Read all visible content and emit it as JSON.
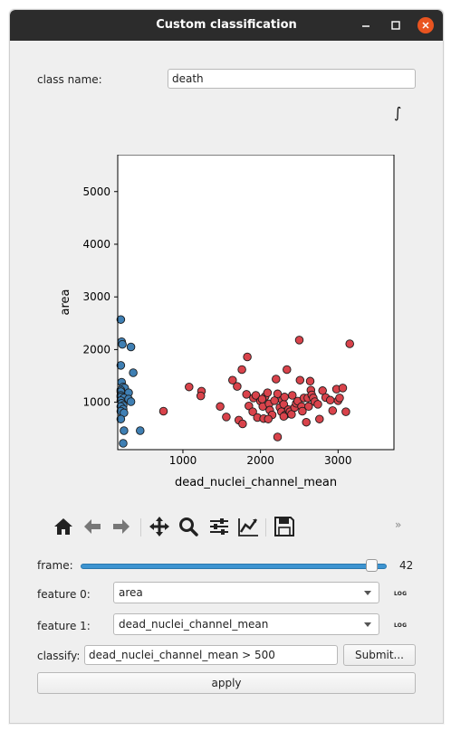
{
  "window": {
    "title": "Custom classification"
  },
  "class_name": {
    "label": "class name:",
    "value": "death"
  },
  "integral_symbol": "∫",
  "toolbar": {
    "icons": [
      "home-icon",
      "back-icon",
      "forward-icon",
      "pan-icon",
      "zoom-icon",
      "configure-subplots-icon",
      "edit-axis-icon",
      "save-icon"
    ],
    "more": "»"
  },
  "frame": {
    "label": "frame:",
    "value": "42",
    "fraction": 0.97
  },
  "feature0": {
    "label": "feature 0:",
    "value": "area",
    "log": "LOG"
  },
  "feature1": {
    "label": "feature 1:",
    "value": "dead_nuclei_channel_mean",
    "log": "LOG"
  },
  "classify": {
    "label": "classify:",
    "value": "dead_nuclei_channel_mean > 500",
    "submit": "Submit..."
  },
  "apply": "apply",
  "chart_data": {
    "type": "scatter",
    "xlabel": "dead_nuclei_channel_mean",
    "ylabel": "area",
    "xlim": [
      160,
      3720
    ],
    "ylim": [
      100,
      5700
    ],
    "xticks": [
      1000,
      2000,
      3000
    ],
    "yticks": [
      1000,
      2000,
      3000,
      4000,
      5000
    ],
    "series": [
      {
        "color": "#3f7fb3",
        "points": [
          [
            200,
            2570
          ],
          [
            210,
            2150
          ],
          [
            220,
            2100
          ],
          [
            330,
            2050
          ],
          [
            200,
            1700
          ],
          [
            360,
            1560
          ],
          [
            210,
            1380
          ],
          [
            230,
            1290
          ],
          [
            250,
            1270
          ],
          [
            200,
            1230
          ],
          [
            200,
            1200
          ],
          [
            300,
            1180
          ],
          [
            200,
            1130
          ],
          [
            200,
            1100
          ],
          [
            240,
            1080
          ],
          [
            300,
            1060
          ],
          [
            200,
            1030
          ],
          [
            330,
            1010
          ],
          [
            210,
            980
          ],
          [
            230,
            940
          ],
          [
            200,
            920
          ],
          [
            230,
            870
          ],
          [
            200,
            830
          ],
          [
            240,
            800
          ],
          [
            200,
            680
          ],
          [
            450,
            460
          ],
          [
            240,
            460
          ],
          [
            230,
            220
          ]
        ]
      },
      {
        "color": "#d9434b",
        "points": [
          [
            750,
            830
          ],
          [
            1080,
            1290
          ],
          [
            1240,
            1210
          ],
          [
            1230,
            1120
          ],
          [
            1480,
            920
          ],
          [
            1560,
            720
          ],
          [
            1640,
            1420
          ],
          [
            1700,
            1300
          ],
          [
            1760,
            1620
          ],
          [
            1830,
            1860
          ],
          [
            1720,
            660
          ],
          [
            1770,
            590
          ],
          [
            1820,
            1150
          ],
          [
            1850,
            930
          ],
          [
            1910,
            1080
          ],
          [
            1940,
            1130
          ],
          [
            1900,
            820
          ],
          [
            1960,
            710
          ],
          [
            2000,
            1020
          ],
          [
            2030,
            920
          ],
          [
            2040,
            690
          ],
          [
            2060,
            1110
          ],
          [
            2090,
            1180
          ],
          [
            2110,
            970
          ],
          [
            2120,
            850
          ],
          [
            2150,
            760
          ],
          [
            2180,
            1030
          ],
          [
            2200,
            1440
          ],
          [
            2220,
            1160
          ],
          [
            2250,
            900
          ],
          [
            2270,
            820
          ],
          [
            2280,
            1040
          ],
          [
            2300,
            960
          ],
          [
            2310,
            1100
          ],
          [
            2320,
            760
          ],
          [
            2340,
            1620
          ],
          [
            2360,
            860
          ],
          [
            2380,
            820
          ],
          [
            2400,
            770
          ],
          [
            2410,
            1130
          ],
          [
            2440,
            900
          ],
          [
            2460,
            980
          ],
          [
            2480,
            1020
          ],
          [
            2500,
            2180
          ],
          [
            2510,
            1420
          ],
          [
            2530,
            920
          ],
          [
            2540,
            830
          ],
          [
            2560,
            1080
          ],
          [
            2590,
            620
          ],
          [
            2610,
            1080
          ],
          [
            2620,
            920
          ],
          [
            2640,
            1400
          ],
          [
            2650,
            1230
          ],
          [
            2660,
            1140
          ],
          [
            2680,
            1080
          ],
          [
            2700,
            1010
          ],
          [
            2740,
            960
          ],
          [
            2760,
            680
          ],
          [
            2800,
            1220
          ],
          [
            2840,
            1090
          ],
          [
            2900,
            1040
          ],
          [
            2930,
            840
          ],
          [
            2980,
            1250
          ],
          [
            3000,
            1030
          ],
          [
            3020,
            1080
          ],
          [
            3060,
            1270
          ],
          [
            3100,
            820
          ],
          [
            3150,
            2110
          ],
          [
            2220,
            340
          ],
          [
            2100,
            680
          ],
          [
            2300,
            730
          ],
          [
            2020,
            1060
          ]
        ]
      }
    ]
  }
}
